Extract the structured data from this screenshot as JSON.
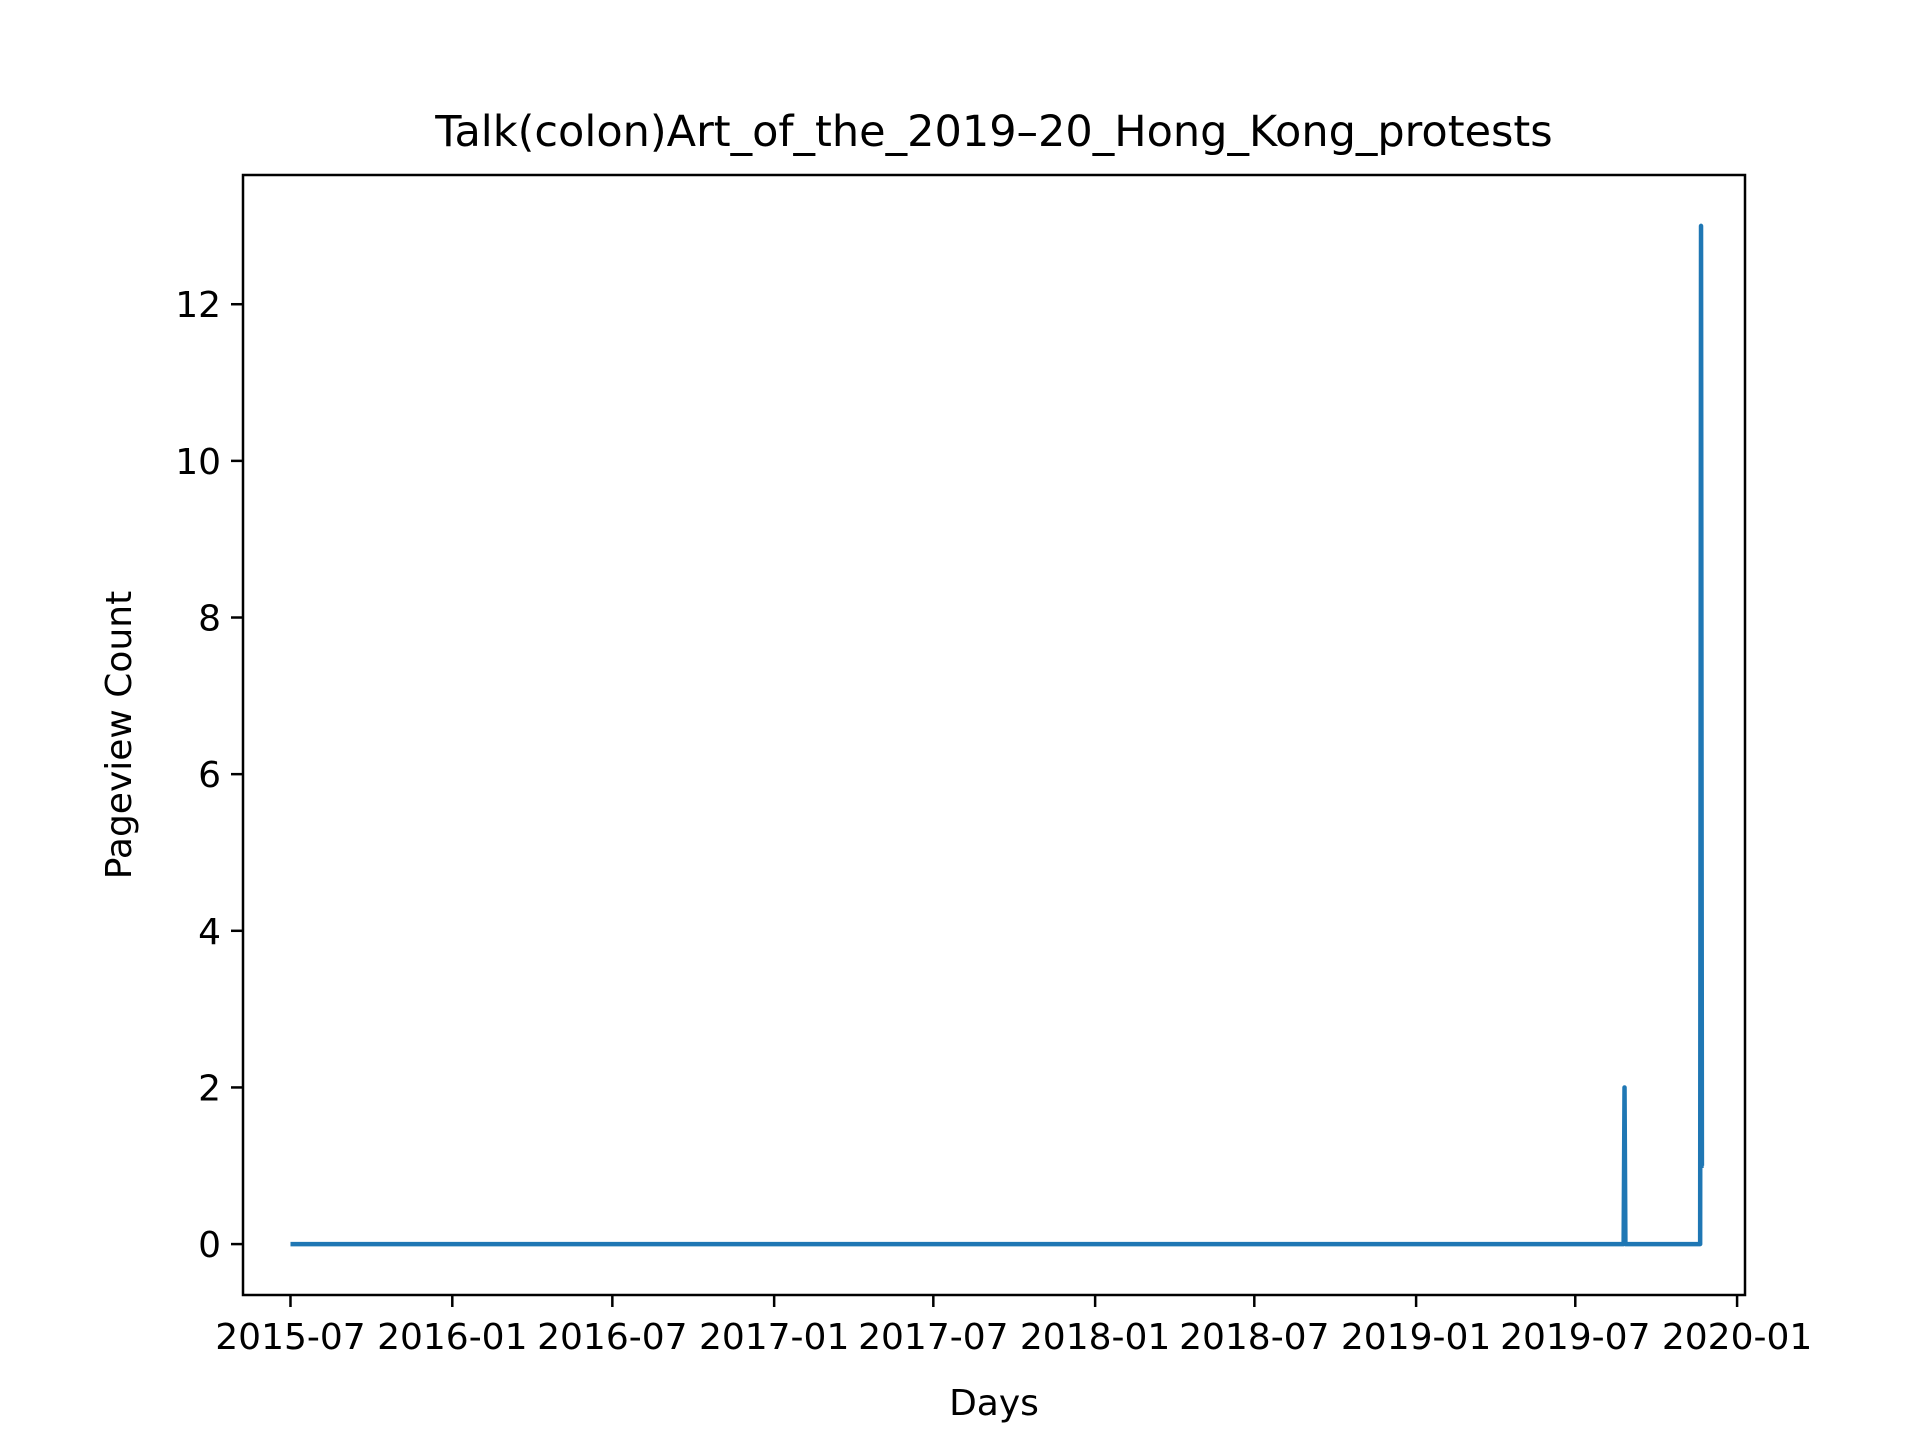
{
  "chart_data": {
    "type": "line",
    "title": "Talk(colon)Art_of_the_2019–20_Hong_Kong_protests",
    "xlabel": "Days",
    "ylabel": "Pageview Count",
    "x_type": "date",
    "xlim": [
      "2015-05-08",
      "2020-01-10"
    ],
    "ylim": [
      -0.65,
      13.65
    ],
    "xticks": [
      {
        "value": "2015-07-01",
        "label": "2015-07"
      },
      {
        "value": "2016-01-01",
        "label": "2016-01"
      },
      {
        "value": "2016-07-01",
        "label": "2016-07"
      },
      {
        "value": "2017-01-01",
        "label": "2017-01"
      },
      {
        "value": "2017-07-01",
        "label": "2017-07"
      },
      {
        "value": "2018-01-01",
        "label": "2018-01"
      },
      {
        "value": "2018-07-01",
        "label": "2018-07"
      },
      {
        "value": "2019-01-01",
        "label": "2019-01"
      },
      {
        "value": "2019-07-01",
        "label": "2019-07"
      },
      {
        "value": "2020-01-01",
        "label": "2020-01"
      }
    ],
    "yticks": [
      0,
      2,
      4,
      6,
      8,
      10,
      12
    ],
    "grid": false,
    "series": [
      {
        "color": "#1f77b4",
        "points": [
          {
            "x": "2015-07-01",
            "y": 0
          },
          {
            "x": "2019-08-25",
            "y": 0
          },
          {
            "x": "2019-08-26",
            "y": 2
          },
          {
            "x": "2019-08-27",
            "y": 0
          },
          {
            "x": "2019-11-20",
            "y": 0
          },
          {
            "x": "2019-11-21",
            "y": 13
          },
          {
            "x": "2019-11-22",
            "y": 1
          },
          {
            "x": "2019-11-24",
            "y": 1
          }
        ]
      }
    ]
  }
}
